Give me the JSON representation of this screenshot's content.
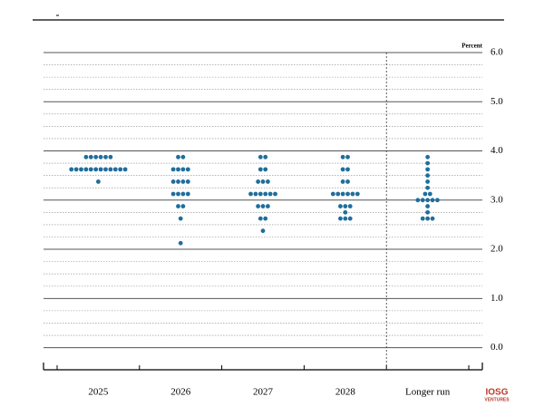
{
  "chart_data": {
    "type": "dot",
    "y_label": "Percent",
    "categories": [
      "2025",
      "2026",
      "2027",
      "2028",
      "Longer run"
    ],
    "values": [
      [
        3.875,
        3.875,
        3.875,
        3.875,
        3.875,
        3.875,
        3.625,
        3.625,
        3.625,
        3.625,
        3.625,
        3.625,
        3.625,
        3.625,
        3.625,
        3.625,
        3.625,
        3.625,
        3.375
      ],
      [
        3.875,
        3.875,
        3.625,
        3.625,
        3.625,
        3.625,
        3.375,
        3.375,
        3.375,
        3.375,
        3.125,
        3.125,
        3.125,
        3.125,
        2.875,
        2.875,
        2.625,
        2.125
      ],
      [
        3.875,
        3.875,
        3.625,
        3.625,
        3.375,
        3.375,
        3.375,
        3.125,
        3.125,
        3.125,
        3.125,
        3.125,
        3.125,
        2.875,
        2.875,
        2.875,
        2.625,
        2.625,
        2.375
      ],
      [
        3.875,
        3.875,
        3.625,
        3.625,
        3.375,
        3.375,
        3.125,
        3.125,
        3.125,
        3.125,
        3.125,
        3.125,
        2.875,
        2.875,
        2.875,
        2.75,
        2.625,
        2.625,
        2.625
      ],
      [
        3.875,
        3.75,
        3.625,
        3.5,
        3.375,
        3.25,
        3.125,
        3.125,
        3.0,
        3.0,
        3.0,
        3.0,
        3.0,
        2.875,
        2.75,
        2.625,
        2.625,
        2.625
      ]
    ],
    "color": "#1f6e9c",
    "ylim": [
      -0.45,
      6.0
    ],
    "yticks": [
      {
        "value": 0,
        "label": "0.0"
      },
      0.5,
      {
        "value": 1,
        "label": "1.0"
      },
      1.5,
      {
        "value": 2,
        "label": "2.0"
      },
      2.5,
      {
        "value": 3,
        "label": "3.0"
      },
      3.5,
      {
        "value": 4,
        "label": "4.0"
      },
      4.5,
      {
        "value": 5,
        "label": "5.0"
      },
      5.5,
      {
        "value": 6,
        "label": "6.0"
      }
    ],
    "minor_yticks": [
      0.25,
      0.75,
      1.25,
      1.75,
      2.25,
      2.75,
      3.25,
      3.75,
      4.25,
      4.75,
      5.25,
      5.75
    ],
    "grid": true,
    "logo": "IOSG",
    "logo_sub": "VENTURES"
  }
}
